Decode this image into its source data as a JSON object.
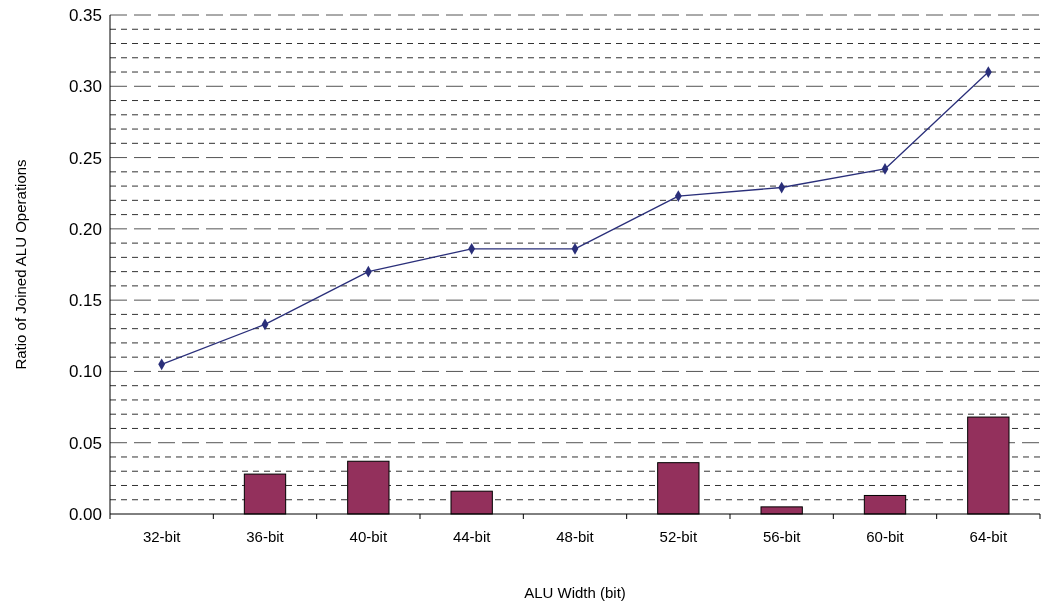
{
  "chart_data": {
    "type": "bar",
    "xlabel": "ALU Width (bit)",
    "ylabel": "Ratio of Joined ALU Operations",
    "categories": [
      "32-bit",
      "36-bit",
      "40-bit",
      "44-bit",
      "48-bit",
      "52-bit",
      "56-bit",
      "60-bit",
      "64-bit"
    ],
    "series": [
      {
        "color": "#93305c",
        "values": [
          0,
          0.028,
          0.037,
          0.016,
          0,
          0.036,
          0.005,
          0.013,
          0.068
        ]
      },
      {
        "type": "line",
        "color": "#2a2f7a",
        "marker": "diamond",
        "values": [
          0.105,
          0.133,
          0.17,
          0.186,
          0.186,
          0.223,
          0.229,
          0.242,
          0.31
        ]
      }
    ],
    "ylim": [
      0,
      0.35
    ],
    "yticks": [
      {
        "value": 0,
        "label": "0.00"
      },
      {
        "value": 0.01,
        "label": null
      },
      {
        "value": 0.02,
        "label": null
      },
      {
        "value": 0.03,
        "label": null
      },
      {
        "value": 0.04,
        "label": null
      },
      {
        "value": 0.05,
        "label": "0.05"
      },
      {
        "value": 0.06,
        "label": null
      },
      {
        "value": 0.07,
        "label": null
      },
      {
        "value": 0.08,
        "label": null
      },
      {
        "value": 0.09,
        "label": null
      },
      {
        "value": 0.1,
        "label": "0.10"
      },
      {
        "value": 0.11,
        "label": null
      },
      {
        "value": 0.12,
        "label": null
      },
      {
        "value": 0.13,
        "label": null
      },
      {
        "value": 0.14,
        "label": null
      },
      {
        "value": 0.15,
        "label": "0.15"
      },
      {
        "value": 0.16,
        "label": null
      },
      {
        "value": 0.17,
        "label": null
      },
      {
        "value": 0.18,
        "label": null
      },
      {
        "value": 0.19,
        "label": null
      },
      {
        "value": 0.2,
        "label": "0.20"
      },
      {
        "value": 0.21,
        "label": null
      },
      {
        "value": 0.22,
        "label": null
      },
      {
        "value": 0.23,
        "label": null
      },
      {
        "value": 0.24,
        "label": null
      },
      {
        "value": 0.25,
        "label": "0.25"
      },
      {
        "value": 0.26,
        "label": null
      },
      {
        "value": 0.27,
        "label": null
      },
      {
        "value": 0.28,
        "label": null
      },
      {
        "value": 0.29,
        "label": null
      },
      {
        "value": 0.3,
        "label": "0.30"
      },
      {
        "value": 0.31,
        "label": null
      },
      {
        "value": 0.32,
        "label": null
      },
      {
        "value": 0.33,
        "label": null
      },
      {
        "value": 0.34,
        "label": null
      },
      {
        "value": 0.35,
        "label": "0.35"
      }
    ],
    "grid": "y"
  }
}
